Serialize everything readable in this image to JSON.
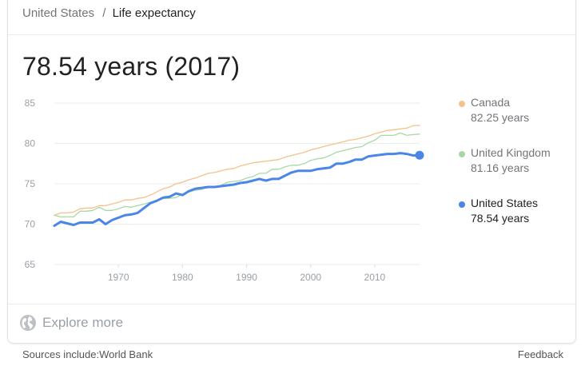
{
  "breadcrumb": {
    "parent": "United States",
    "separator": "/",
    "current": "Life expectancy"
  },
  "headline": "78.54 years (2017)",
  "legend": [
    {
      "name": "Canada",
      "value": "82.25 years",
      "color": "#f4c28a",
      "active": false
    },
    {
      "name": "United Kingdom",
      "value": "81.16 years",
      "color": "#a8d8a5",
      "active": false
    },
    {
      "name": "United States",
      "value": "78.54 years",
      "color": "#4a86e8",
      "active": true
    }
  ],
  "explore": {
    "label": "Explore more",
    "icon": "globe-icon"
  },
  "footer": {
    "sources": "Sources include:World Bank",
    "feedback": "Feedback"
  },
  "chart_data": {
    "type": "line",
    "xlim": [
      1960,
      2017
    ],
    "ylim": [
      65,
      85
    ],
    "yticks": [
      65,
      70,
      75,
      80,
      85
    ],
    "xticks": [
      1970,
      1980,
      1990,
      2000,
      2010
    ],
    "grid": true,
    "legend_position": "right",
    "x": [
      1960,
      1961,
      1962,
      1963,
      1964,
      1965,
      1966,
      1967,
      1968,
      1969,
      1970,
      1971,
      1972,
      1973,
      1974,
      1975,
      1976,
      1977,
      1978,
      1979,
      1980,
      1981,
      1982,
      1983,
      1984,
      1985,
      1986,
      1987,
      1988,
      1989,
      1990,
      1991,
      1992,
      1993,
      1994,
      1995,
      1996,
      1997,
      1998,
      1999,
      2000,
      2001,
      2002,
      2003,
      2004,
      2005,
      2006,
      2007,
      2008,
      2009,
      2010,
      2011,
      2012,
      2013,
      2014,
      2015,
      2016,
      2017
    ],
    "series": [
      {
        "name": "Canada",
        "color": "#f4c28a",
        "values": [
          71.1,
          71.4,
          71.4,
          71.5,
          71.9,
          72.0,
          72.0,
          72.3,
          72.3,
          72.5,
          72.7,
          73.0,
          73.0,
          73.2,
          73.3,
          73.6,
          74.0,
          74.4,
          74.6,
          75.0,
          75.2,
          75.5,
          75.7,
          76.0,
          76.3,
          76.4,
          76.6,
          76.8,
          76.9,
          77.2,
          77.4,
          77.6,
          77.7,
          77.8,
          77.9,
          78.0,
          78.3,
          78.5,
          78.7,
          78.9,
          79.2,
          79.4,
          79.6,
          79.8,
          80.0,
          80.2,
          80.4,
          80.5,
          80.7,
          80.9,
          81.2,
          81.4,
          81.6,
          81.7,
          81.8,
          81.9,
          82.2,
          82.25
        ]
      },
      {
        "name": "United Kingdom",
        "color": "#a8d8a5",
        "values": [
          71.1,
          70.9,
          70.9,
          70.9,
          71.6,
          71.6,
          71.7,
          72.1,
          71.7,
          71.7,
          71.9,
          72.2,
          72.1,
          72.3,
          72.5,
          72.7,
          72.9,
          73.2,
          73.2,
          73.3,
          73.7,
          74.0,
          74.2,
          74.3,
          74.6,
          74.6,
          74.8,
          75.2,
          75.3,
          75.4,
          75.7,
          75.9,
          76.3,
          76.3,
          76.8,
          76.8,
          77.1,
          77.3,
          77.3,
          77.5,
          77.9,
          78.1,
          78.2,
          78.5,
          78.9,
          79.1,
          79.3,
          79.5,
          79.6,
          80.1,
          80.4,
          81.0,
          81.0,
          81.0,
          81.3,
          81.0,
          81.1,
          81.16
        ]
      },
      {
        "name": "United States",
        "color": "#4a86e8",
        "values": [
          69.8,
          70.3,
          70.1,
          69.9,
          70.2,
          70.2,
          70.2,
          70.6,
          70.0,
          70.5,
          70.8,
          71.1,
          71.2,
          71.4,
          72.0,
          72.6,
          72.9,
          73.3,
          73.4,
          73.8,
          73.6,
          74.1,
          74.4,
          74.5,
          74.6,
          74.6,
          74.7,
          74.8,
          74.9,
          75.1,
          75.2,
          75.4,
          75.6,
          75.4,
          75.6,
          75.6,
          76.0,
          76.4,
          76.6,
          76.6,
          76.6,
          76.8,
          76.9,
          77.0,
          77.5,
          77.5,
          77.7,
          78.0,
          78.0,
          78.4,
          78.5,
          78.6,
          78.7,
          78.7,
          78.8,
          78.7,
          78.5,
          78.54
        ]
      }
    ]
  }
}
